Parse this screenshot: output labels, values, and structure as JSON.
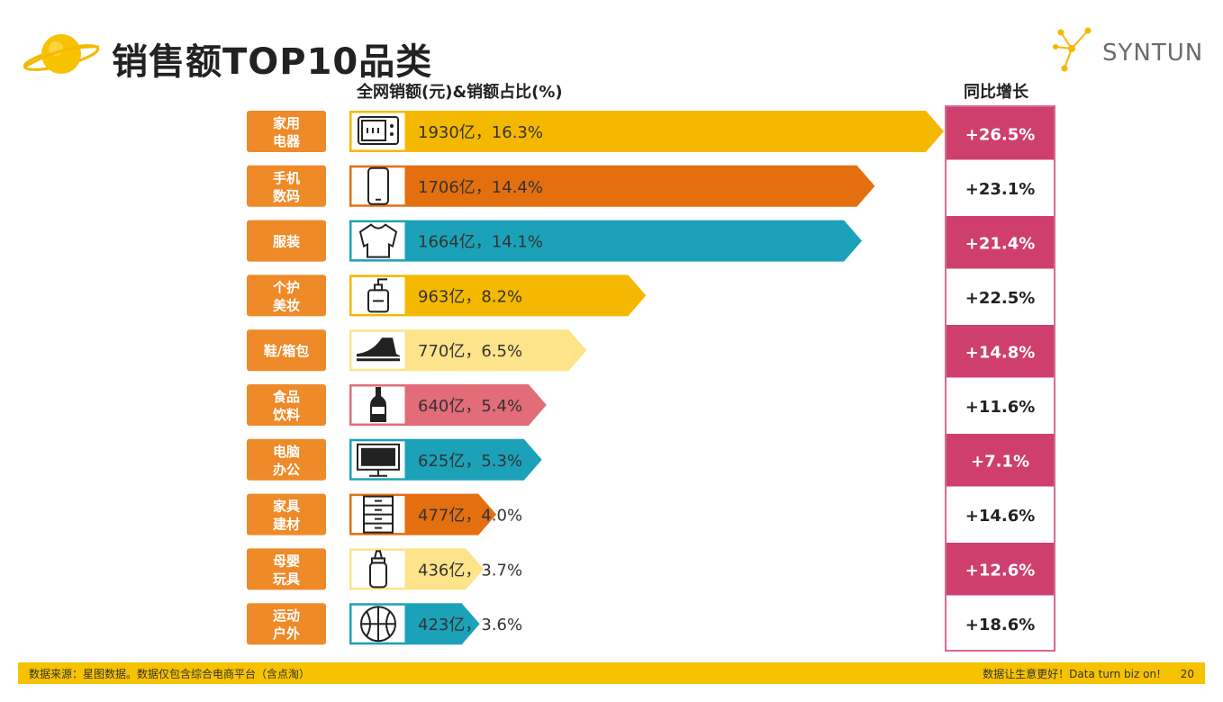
{
  "header": {
    "title": "销售额TOP10品类",
    "logo_text": "SYNTUN"
  },
  "colors": {
    "yellow": "#f5b800",
    "orange": "#e46f0f",
    "teal": "#1ba2b8",
    "lightyellow": "#fde48a",
    "pink": "#e26c78",
    "label_orange": "#ee8a28",
    "growth_highlight": "#cf3f6d",
    "footer": "#f7c200"
  },
  "chart_data": {
    "type": "bar",
    "title": "销售额TOP10品类",
    "value_header": "全网销额(元)&销额占比(%)",
    "growth_header": "同比增长",
    "rows": [
      {
        "category": "家用\n电器",
        "label": "1930亿，16.3%",
        "sales_yi": 1930,
        "share": 16.3,
        "growth": "+26.5%",
        "color": "yellow",
        "icon": "microwave-icon"
      },
      {
        "category": "手机\n数码",
        "label": "1706亿，14.4%",
        "sales_yi": 1706,
        "share": 14.4,
        "growth": "+23.1%",
        "color": "orange",
        "icon": "phone-icon"
      },
      {
        "category": "服装",
        "label": "1664亿，14.1%",
        "sales_yi": 1664,
        "share": 14.1,
        "growth": "+21.4%",
        "color": "teal",
        "icon": "shirt-icon"
      },
      {
        "category": "个护\n美妆",
        "label": "963亿，8.2%",
        "sales_yi": 963,
        "share": 8.2,
        "growth": "+22.5%",
        "color": "yellow",
        "icon": "pump-bottle-icon"
      },
      {
        "category": "鞋/箱包",
        "label": "770亿，6.5%",
        "sales_yi": 770,
        "share": 6.5,
        "growth": "+14.8%",
        "color": "lightyellow",
        "icon": "sneaker-icon"
      },
      {
        "category": "食品\n饮料",
        "label": "640亿，5.4%",
        "sales_yi": 640,
        "share": 5.4,
        "growth": "+11.6%",
        "color": "pink",
        "icon": "bottle-icon"
      },
      {
        "category": "电脑\n办公",
        "label": "625亿，5.3%",
        "sales_yi": 625,
        "share": 5.3,
        "growth": "+7.1%",
        "color": "teal",
        "icon": "monitor-icon"
      },
      {
        "category": "家具\n建材",
        "label": "477亿，4.0%",
        "sales_yi": 477,
        "share": 4.0,
        "growth": "+14.6%",
        "color": "orange",
        "icon": "drawer-icon"
      },
      {
        "category": "母婴\n玩具",
        "label": "436亿，3.7%",
        "sales_yi": 436,
        "share": 3.7,
        "growth": "+12.6%",
        "color": "lightyellow",
        "icon": "baby-bottle-icon"
      },
      {
        "category": "运动\n户外",
        "label": "423亿，3.6%",
        "sales_yi": 423,
        "share": 3.6,
        "growth": "+18.6%",
        "color": "teal",
        "icon": "basketball-icon"
      }
    ]
  },
  "footer": {
    "source": "数据来源：星图数据。数据仅包含综合电商平台（含点淘）",
    "slogan": "数据让生意更好！Data turn biz on!",
    "page": "20"
  }
}
